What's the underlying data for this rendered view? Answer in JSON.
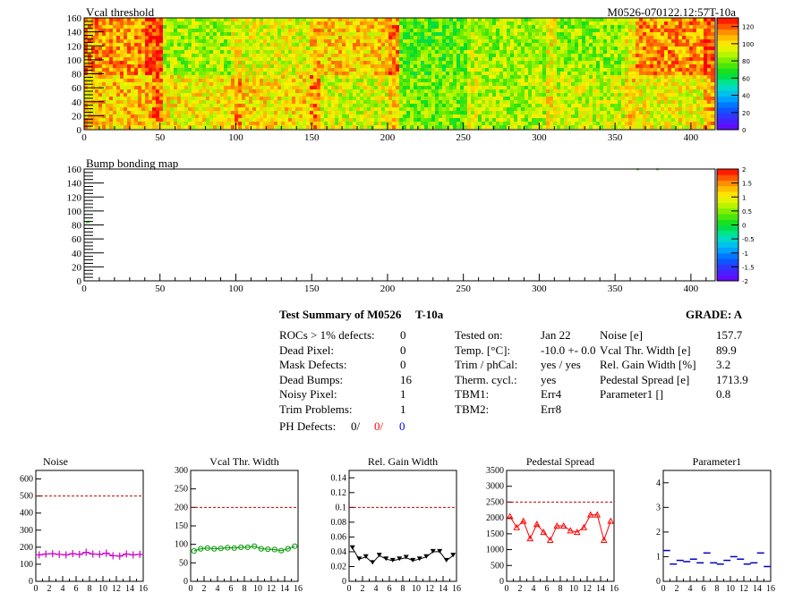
{
  "header": {
    "vcal_title": "Vcal threshold",
    "module_id": "M0526-070122.12:57T-10a",
    "bump_title": "Bump bonding map"
  },
  "summary": {
    "title": "Test Summary of M0526",
    "temp_label": "T-10a",
    "grade": "GRADE:  A",
    "left_rows": [
      {
        "label": "ROCs > 1% defects:",
        "value": "0"
      },
      {
        "label": "Dead Pixel:",
        "value": "0"
      },
      {
        "label": "Mask Defects:",
        "value": "0"
      },
      {
        "label": "Dead Bumps:",
        "value": "16"
      },
      {
        "label": "Noisy Pixel:",
        "value": "1"
      },
      {
        "label": "Trim Problems:",
        "value": "1"
      }
    ],
    "ph_defects": {
      "label": "PH Defects:",
      "v1": "0/",
      "v2": "0/",
      "v3": "0"
    },
    "mid_rows": [
      {
        "label": "Tested on:",
        "value": "Jan 22"
      },
      {
        "label": "Temp. [°C]:",
        "value": "-10.0 +- 0.0"
      },
      {
        "label": "Trim / phCal:",
        "value": "yes / yes"
      },
      {
        "label": "Therm. cycl.:",
        "value": "yes"
      },
      {
        "label": "TBM1:",
        "value": "Err4"
      },
      {
        "label": "TBM2:",
        "value": "Err8"
      }
    ],
    "right_rows": [
      {
        "label": "Noise [e]",
        "value": "157.7"
      },
      {
        "label": "Vcal Thr. Width [e]",
        "value": "89.9"
      },
      {
        "label": "Rel. Gain Width [%]",
        "value": "3.2"
      },
      {
        "label": "Pedestal Spread [e]",
        "value": "1713.9"
      },
      {
        "label": "Parameter1 []",
        "value": "0.8"
      }
    ],
    "colors": {
      "red": "#ff0000",
      "blue": "#0000ff"
    }
  },
  "chart_data": [
    {
      "type": "heatmap",
      "title": "Vcal threshold",
      "xlim": [
        0,
        416
      ],
      "ylim": [
        0,
        160
      ],
      "x_ticks": [
        "0",
        "50",
        "100",
        "150",
        "200",
        "250",
        "300",
        "350",
        "400"
      ],
      "y_ticks": [
        "0",
        "20",
        "40",
        "60",
        "80",
        "100",
        "120",
        "140",
        "160"
      ],
      "z_range": [
        0,
        130
      ],
      "z_ticks": [
        "0",
        "20",
        "40",
        "60",
        "80",
        "100",
        "120"
      ],
      "roc_mean_top": [
        112,
        85,
        93,
        103,
        76,
        84,
        83,
        112
      ],
      "roc_mean_bottom": [
        105,
        98,
        101,
        92,
        80,
        86,
        90,
        96
      ]
    },
    {
      "type": "heatmap",
      "title": "Bump bonding map",
      "xlim": [
        0,
        416
      ],
      "ylim": [
        0,
        160
      ],
      "x_ticks": [
        "0",
        "50",
        "100",
        "150",
        "200",
        "250",
        "300",
        "350",
        "400"
      ],
      "y_ticks": [
        "0",
        "20",
        "40",
        "60",
        "80",
        "100",
        "120",
        "140",
        "160"
      ],
      "z_range": [
        -2,
        2
      ],
      "z_ticks": [
        "-2",
        "-1.5",
        "-1",
        "-0.5",
        "0",
        "0.5",
        "1",
        "1.5",
        "2"
      ],
      "hits": [
        {
          "x": 2,
          "y": 83
        },
        {
          "x": 3,
          "y": 84
        },
        {
          "x": 365,
          "y": 159
        },
        {
          "x": 378,
          "y": 159
        }
      ]
    },
    {
      "type": "line",
      "title": "Noise",
      "x_ticks": [
        "0",
        "2",
        "4",
        "6",
        "8",
        "10",
        "12",
        "14",
        "16"
      ],
      "y_ticks": [
        "0",
        "100",
        "200",
        "300",
        "400",
        "500",
        "600"
      ],
      "xlim": [
        0,
        16
      ],
      "ylim": [
        0,
        650
      ],
      "ref_line": 500,
      "marker": "plus",
      "color": "#cc00cc",
      "x": [
        0.5,
        1.5,
        2.5,
        3.5,
        4.5,
        5.5,
        6.5,
        7.5,
        8.5,
        9.5,
        10.5,
        11.5,
        12.5,
        13.5,
        14.5,
        15.5
      ],
      "values": [
        155,
        160,
        162,
        158,
        155,
        162,
        158,
        170,
        160,
        158,
        165,
        150,
        148,
        160,
        155,
        158
      ]
    },
    {
      "type": "line",
      "title": "Vcal Thr. Width",
      "x_ticks": [
        "0",
        "2",
        "4",
        "6",
        "8",
        "10",
        "12",
        "14",
        "16"
      ],
      "y_ticks": [
        "0",
        "50",
        "100",
        "150",
        "200",
        "250",
        "300"
      ],
      "xlim": [
        0,
        16
      ],
      "ylim": [
        0,
        300
      ],
      "ref_line": 200,
      "marker": "circle",
      "color": "#009900",
      "x": [
        0.5,
        1.5,
        2.5,
        3.5,
        4.5,
        5.5,
        6.5,
        7.5,
        8.5,
        9.5,
        10.5,
        11.5,
        12.5,
        13.5,
        14.5,
        15.5
      ],
      "values": [
        82,
        88,
        90,
        88,
        89,
        91,
        90,
        92,
        92,
        95,
        88,
        87,
        86,
        83,
        88,
        95
      ]
    },
    {
      "type": "line",
      "title": "Rel. Gain Width",
      "x_ticks": [
        "0",
        "2",
        "4",
        "6",
        "8",
        "10",
        "12",
        "14",
        "16"
      ],
      "y_ticks": [
        "0",
        "0.02",
        "0.04",
        "0.06",
        "0.08",
        "0.1",
        "0.12",
        "0.14"
      ],
      "xlim": [
        0,
        16
      ],
      "ylim": [
        0,
        0.15
      ],
      "ref_line": 0.1,
      "marker": "triangle-down",
      "color": "#000000",
      "x": [
        0.5,
        1.5,
        2.5,
        3.5,
        4.5,
        5.5,
        6.5,
        7.5,
        8.5,
        9.5,
        10.5,
        11.5,
        12.5,
        13.5,
        14.5,
        15.5
      ],
      "values": [
        0.045,
        0.03,
        0.033,
        0.025,
        0.035,
        0.03,
        0.028,
        0.03,
        0.032,
        0.028,
        0.03,
        0.033,
        0.04,
        0.04,
        0.028,
        0.035
      ]
    },
    {
      "type": "line",
      "title": "Pedestal Spread",
      "x_ticks": [
        "0",
        "2",
        "4",
        "6",
        "8",
        "10",
        "12",
        "14",
        "16"
      ],
      "y_ticks": [
        "0",
        "500",
        "1000",
        "1500",
        "2000",
        "2500",
        "3000",
        "3500"
      ],
      "xlim": [
        0,
        16
      ],
      "ylim": [
        0,
        3500
      ],
      "ref_line": 2500,
      "marker": "triangle-up",
      "color": "#ff0000",
      "x": [
        0.5,
        1.5,
        2.5,
        3.5,
        4.5,
        5.5,
        6.5,
        7.5,
        8.5,
        9.5,
        10.5,
        11.5,
        12.5,
        13.5,
        14.5,
        15.5
      ],
      "values": [
        2050,
        1700,
        1900,
        1350,
        1800,
        1550,
        1300,
        1750,
        1750,
        1600,
        1550,
        1700,
        2100,
        2100,
        1300,
        1900
      ]
    },
    {
      "type": "scatter",
      "title": "Parameter1",
      "x_ticks": [
        "0",
        "2",
        "4",
        "6",
        "8",
        "10",
        "12",
        "14",
        "16"
      ],
      "y_ticks": [
        "0",
        "1",
        "2",
        "3",
        "4"
      ],
      "xlim": [
        0,
        16
      ],
      "ylim": [
        0,
        4.5
      ],
      "marker": "hbar",
      "color": "#0000cc",
      "x": [
        0.5,
        1.5,
        2.5,
        3.5,
        4.5,
        5.5,
        6.5,
        7.5,
        8.5,
        9.5,
        10.5,
        11.5,
        12.5,
        13.5,
        14.5,
        15.5
      ],
      "values": [
        1.25,
        0.7,
        0.85,
        0.8,
        0.9,
        0.75,
        1.15,
        0.75,
        0.7,
        0.85,
        1.0,
        0.9,
        0.7,
        0.75,
        1.15,
        0.6
      ]
    }
  ]
}
